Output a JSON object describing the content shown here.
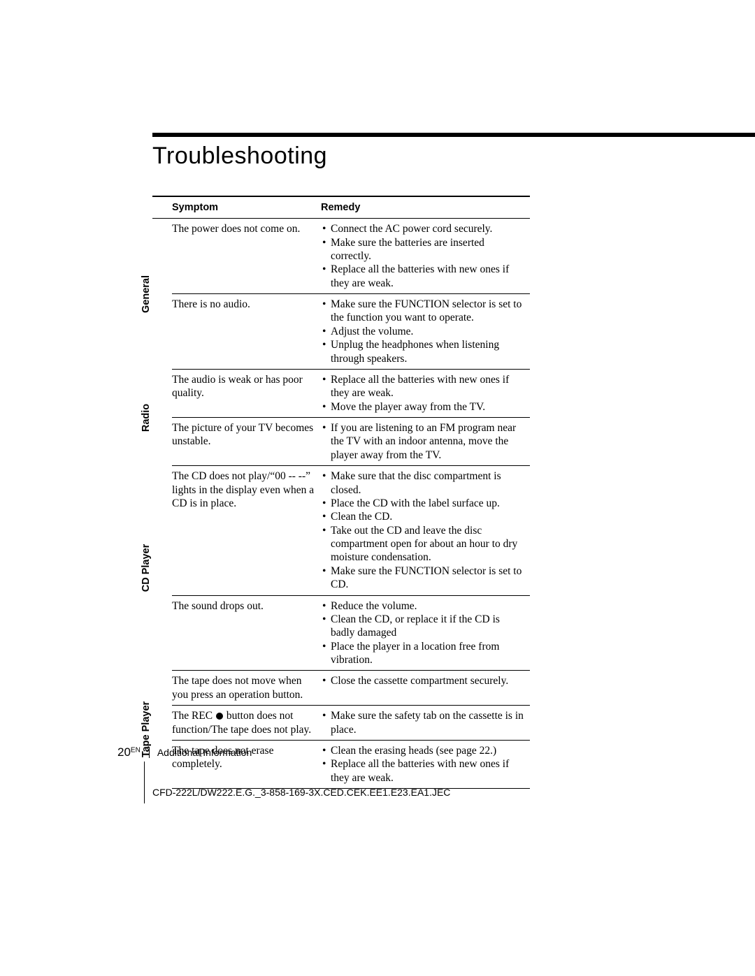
{
  "heading": "Troubleshooting",
  "table": {
    "headers": {
      "symptom": "Symptom",
      "remedy": "Remedy"
    },
    "sections": [
      {
        "label": "General",
        "rows": [
          {
            "symptom": "The power does not come on.",
            "remedies": [
              "Connect the AC power cord securely.",
              "Make sure the batteries are inserted correctly.",
              "Replace all the batteries with new ones if they are weak."
            ]
          },
          {
            "symptom": "There is no audio.",
            "remedies": [
              "Make sure the FUNCTION selector is set to the function you want to operate.",
              "Adjust the volume.",
              "Unplug the headphones when listening through speakers."
            ]
          }
        ]
      },
      {
        "label": "Radio",
        "rows": [
          {
            "symptom": "The audio is weak or has poor quality.",
            "remedies": [
              "Replace all the batteries with new ones if they are weak.",
              "Move the player away from the TV."
            ]
          },
          {
            "symptom": "The picture of your TV becomes unstable.",
            "remedies": [
              "If you are listening to an FM program near the TV with an indoor antenna, move the player away from the TV."
            ]
          }
        ]
      },
      {
        "label": "CD Player",
        "rows": [
          {
            "symptom": "The CD does not play/“00 -- --” lights in the display even when a CD is in place.",
            "remedies": [
              "Make sure that the disc compartment is closed.",
              "Place the CD with the label surface up.",
              "Clean the CD.",
              "Take out the CD and leave the disc compartment  open for about an hour to dry moisture condensation.",
              "Make sure the FUNCTION selector is set to CD."
            ]
          },
          {
            "symptom": "The sound drops out.",
            "remedies": [
              "Reduce the volume.",
              "Clean the CD, or  replace it if the CD is badly damaged",
              "Place the player in a location free from vibration."
            ]
          }
        ]
      },
      {
        "label": "Tape Player",
        "rows": [
          {
            "symptom": "The tape does not move when you press an operation button.",
            "remedies": [
              "Close the cassette compartment securely."
            ]
          },
          {
            "symptom_html": "The REC <span class=\"rec-dot\"></span> button does not function/The tape does not play.",
            "remedies": [
              "Make sure the safety tab on the cassette is in place."
            ]
          },
          {
            "symptom": "The tape does not erase completely.",
            "remedies": [
              "Clean the erasing heads (see page 22.)",
              "Replace all the batteries with new ones if they are weak."
            ]
          }
        ]
      }
    ]
  },
  "footer": {
    "page_number": "20",
    "page_super": "EN",
    "section": "Additional Information",
    "doc_code": "CFD-222L/DW222.E.G._3-858-169-3X.CED.CEK.EE1.E23.EA1.JEC"
  }
}
